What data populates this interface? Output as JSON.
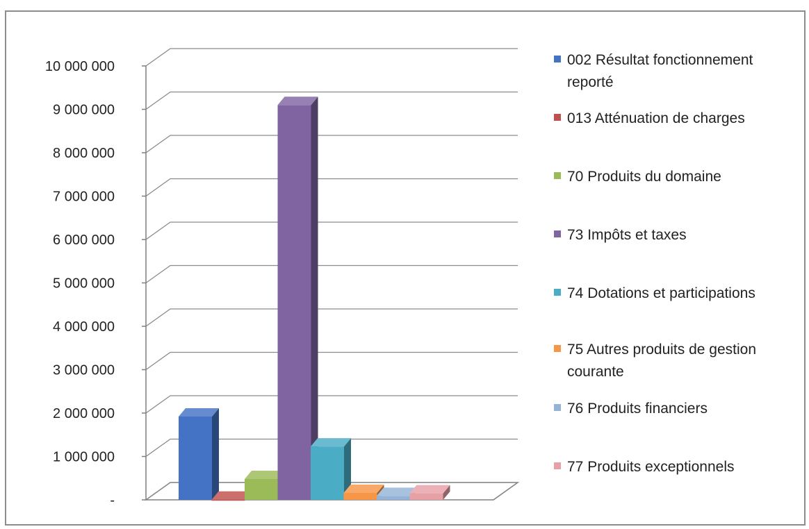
{
  "chart_data": {
    "type": "bar",
    "style": "3d-column",
    "categories": [
      "002 Résultat fonctionnement reporté",
      "013 Atténuation de charges",
      "70 Produits du domaine",
      "73 Impôts et taxes",
      "74 Dotations et participations",
      "75 Autres produits de gestion courante",
      "76 Produits financiers",
      "77 Produits exceptionnels"
    ],
    "values": [
      1920000,
      5000,
      480000,
      9100000,
      1230000,
      160000,
      90000,
      150000
    ],
    "ylim": [
      0,
      10000000
    ],
    "ytick_values": [
      0,
      1000000,
      2000000,
      3000000,
      4000000,
      5000000,
      6000000,
      7000000,
      8000000,
      9000000,
      10000000
    ],
    "ytick_labels": [
      "-",
      "1 000 000",
      "2 000 000",
      "3 000 000",
      "4 000 000",
      "5 000 000",
      "6 000 000",
      "7 000 000",
      "8 000 000",
      "9 000 000",
      "10 000 000"
    ],
    "grid": true,
    "legend_position": "right",
    "legend": [
      {
        "lines": [
          "002 Résultat fonctionnement",
          "reporté"
        ]
      },
      {
        "lines": [
          "013 Atténuation de charges"
        ]
      },
      {
        "lines": [
          "70 Produits du domaine"
        ]
      },
      {
        "lines": [
          "73 Impôts et taxes"
        ]
      },
      {
        "lines": [
          "74 Dotations et participations"
        ]
      },
      {
        "lines": [
          "75 Autres produits de gestion",
          "courante"
        ]
      },
      {
        "lines": [
          "76 Produits financiers"
        ]
      },
      {
        "lines": [
          "77 Produits exceptionnels"
        ]
      }
    ],
    "colors": [
      "#4472c4",
      "#c0504d",
      "#9bbb59",
      "#8064a2",
      "#4bacc6",
      "#f79646",
      "#95b3d7",
      "#e6a0a6"
    ]
  }
}
